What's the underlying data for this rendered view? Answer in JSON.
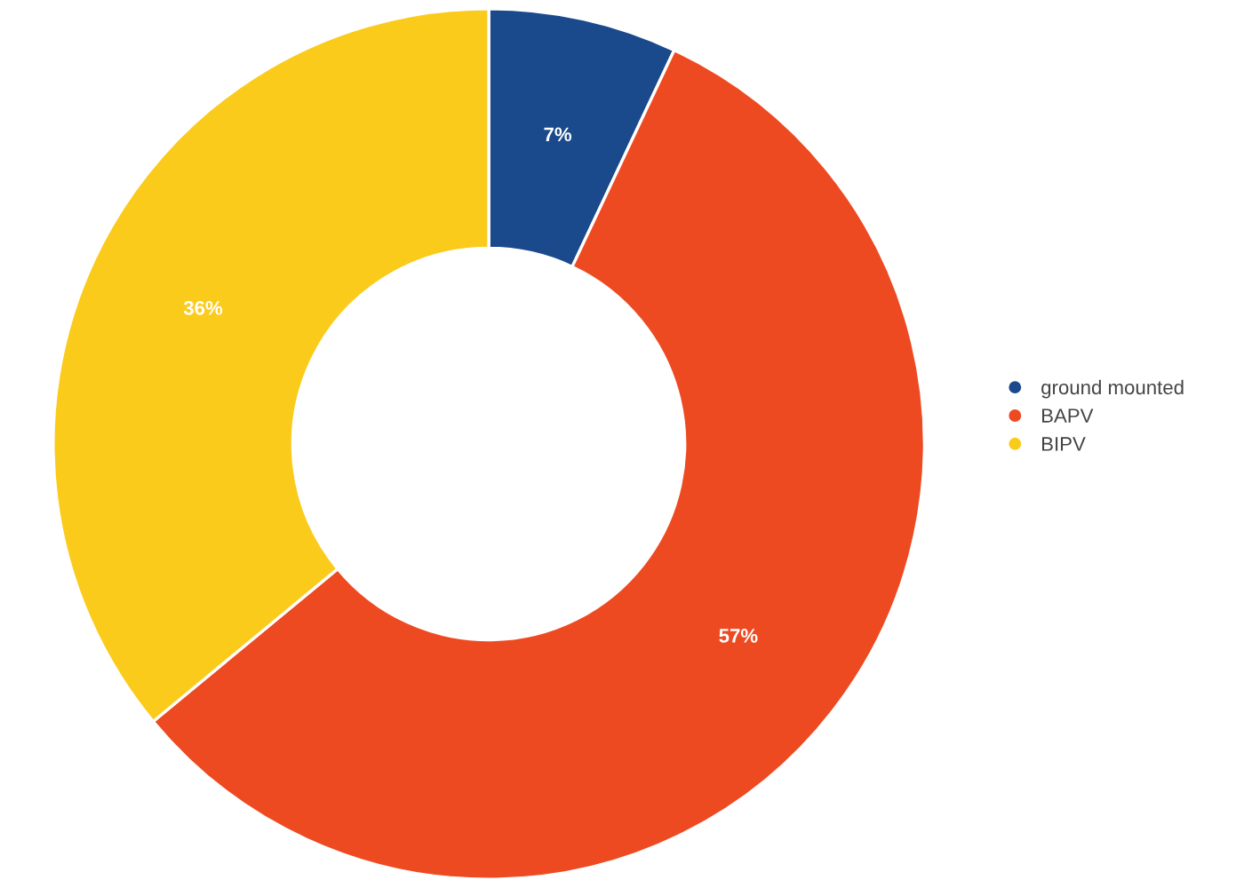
{
  "chart_data": {
    "type": "donut",
    "categories": [
      "ground mounted",
      "BAPV",
      "BIPV"
    ],
    "values": [
      7,
      57,
      36
    ],
    "colors": [
      "#1a4a8c",
      "#ee4a22",
      "#fbcb1c"
    ],
    "value_labels": [
      "7%",
      "57%",
      "36%"
    ],
    "legend": "right"
  }
}
